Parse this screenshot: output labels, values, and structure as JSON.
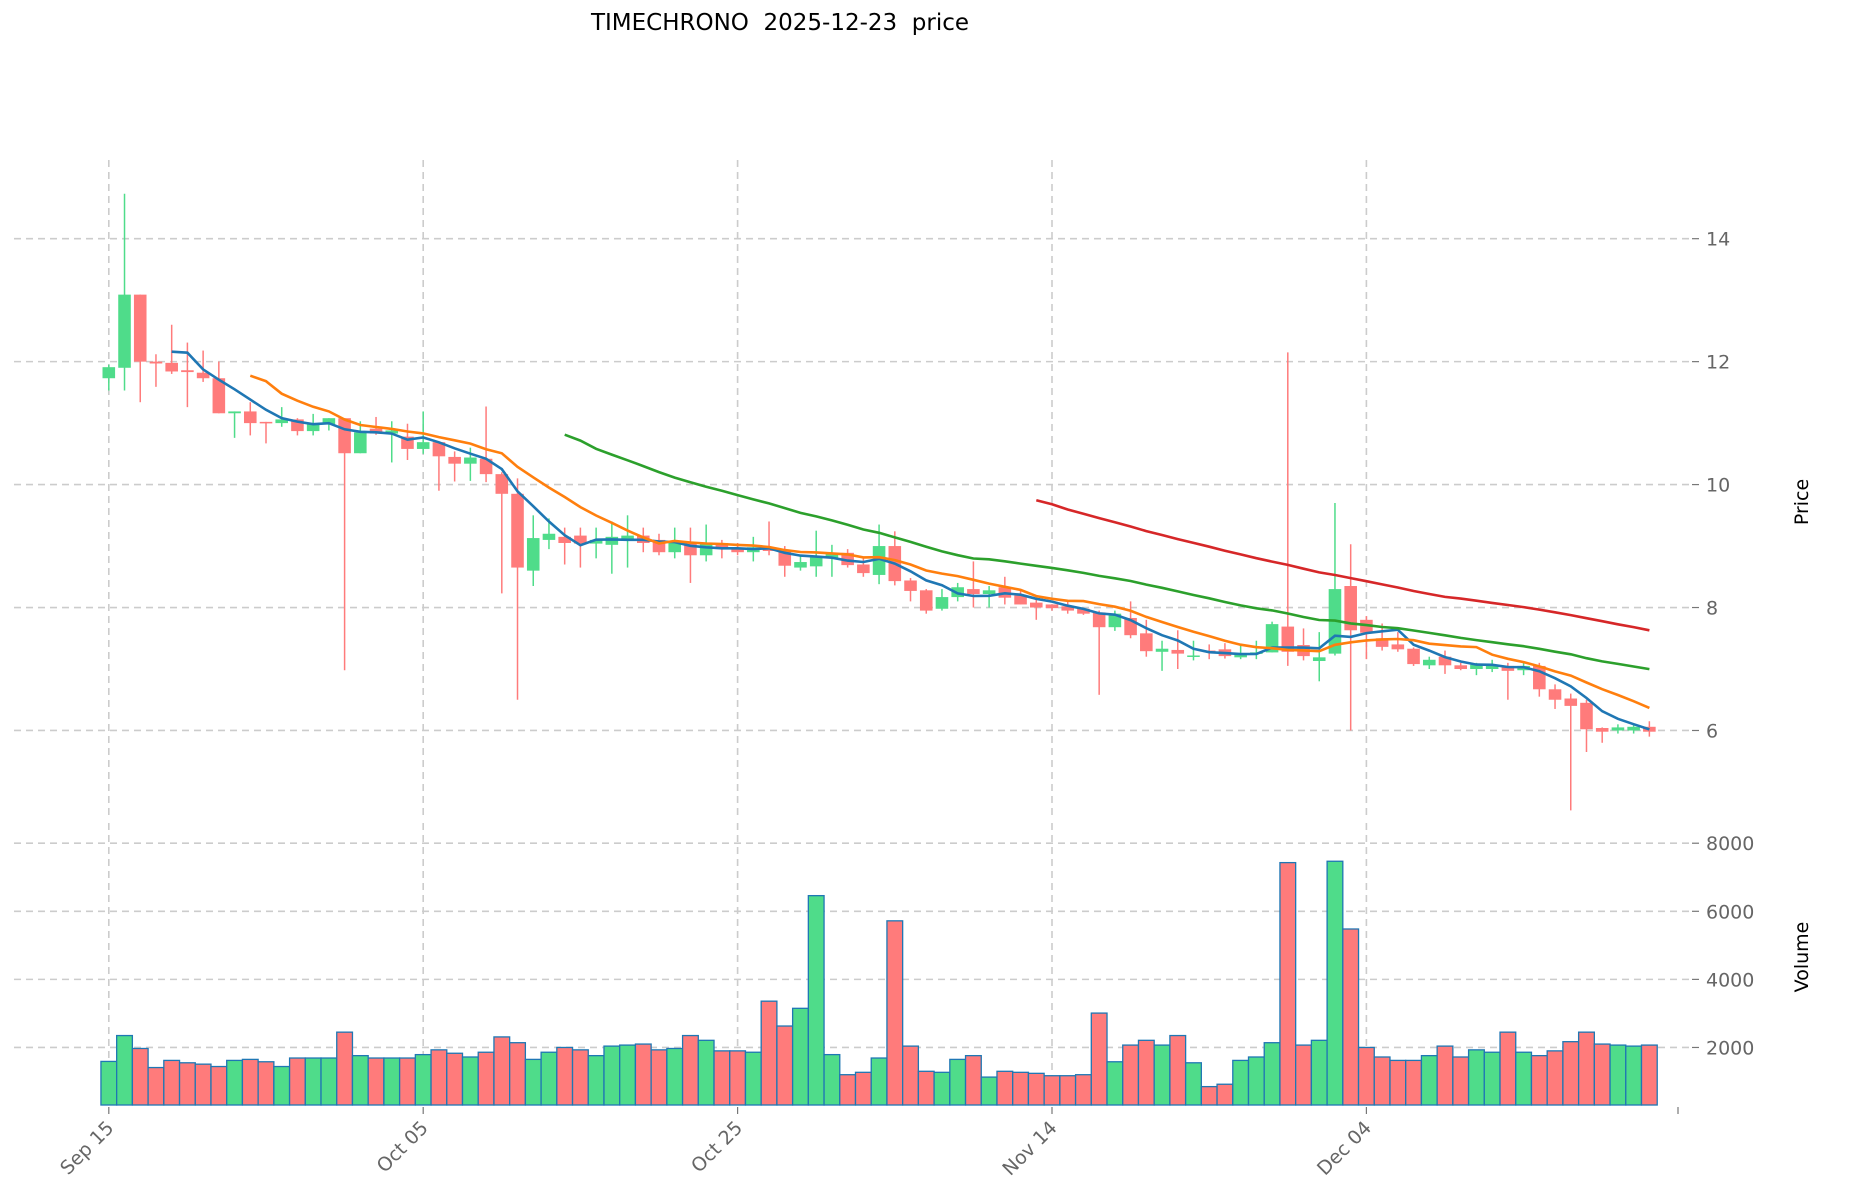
{
  "chart_data": {
    "type": "candlestick",
    "title": "TIMECHRONO  2025-12-23  price",
    "start_date": "2025-09-15",
    "x_tick_labels": [
      "Sep 15",
      "Oct 05",
      "Oct 25",
      "Nov 14",
      "Dec 04"
    ],
    "x_tick_days": [
      0,
      20,
      40,
      60,
      80
    ],
    "price_panel": {
      "ylabel": "Price",
      "ylim": [
        4.56,
        15.28
      ],
      "yticks": [
        6,
        8,
        10,
        12,
        14
      ],
      "ytick_labels": [
        "6",
        "8",
        "10",
        "12",
        "14"
      ],
      "grid": true
    },
    "volume_panel": {
      "ylabel": "Volume",
      "ylim": [
        310,
        8300
      ],
      "yticks": [
        2000,
        4000,
        6000,
        8000
      ],
      "ytick_labels": [
        "2000",
        "4000",
        "6000",
        "8000"
      ],
      "grid": true
    },
    "open": [
      11.73,
      11.9,
      13.09,
      12.0,
      11.98,
      11.86,
      11.82,
      11.73,
      11.16,
      11.19,
      11.02,
      11.0,
      11.06,
      10.87,
      10.98,
      11.08,
      10.51,
      10.91,
      10.83,
      10.78,
      10.58,
      10.69,
      10.45,
      10.34,
      10.42,
      10.17,
      9.85,
      8.6,
      9.1,
      9.15,
      9.17,
      9.04,
      9.02,
      9.1,
      9.17,
      9.1,
      8.9,
      9.05,
      8.85,
      9.05,
      8.97,
      8.9,
      8.98,
      8.92,
      8.65,
      8.67,
      8.81,
      8.89,
      8.7,
      8.53,
      9.0,
      8.44,
      8.28,
      7.98,
      8.17,
      8.3,
      8.22,
      8.33,
      8.2,
      8.08,
      8.05,
      8.02,
      7.98,
      7.92,
      7.68,
      7.83,
      7.58,
      7.28,
      7.31,
      7.2,
      7.3,
      7.32,
      7.19,
      7.25,
      7.27,
      7.69,
      7.39,
      7.13,
      7.25,
      8.35,
      7.8,
      7.5,
      7.4,
      7.33,
      7.06,
      7.2,
      7.06,
      7.0,
      7.0,
      7.05,
      6.98,
      7.05,
      6.67,
      6.52,
      6.45,
      6.04,
      6.0,
      6.0,
      6.06
    ],
    "high": [
      11.95,
      14.73,
      13.09,
      12.12,
      12.6,
      12.31,
      12.18,
      12.0,
      11.19,
      11.34,
      11.02,
      11.26,
      11.08,
      11.15,
      11.08,
      11.08,
      11.03,
      11.1,
      11.03,
      10.99,
      11.19,
      10.69,
      10.54,
      10.6,
      11.27,
      10.2,
      10.1,
      9.5,
      9.45,
      9.3,
      9.3,
      9.3,
      9.4,
      9.5,
      9.3,
      9.2,
      9.3,
      9.3,
      9.35,
      9.1,
      9.05,
      9.15,
      9.4,
      9.0,
      8.85,
      9.25,
      9.02,
      8.95,
      8.82,
      9.35,
      9.24,
      8.48,
      8.3,
      8.3,
      8.4,
      8.75,
      8.35,
      8.5,
      8.3,
      8.15,
      8.05,
      8.1,
      8.0,
      7.95,
      7.95,
      8.1,
      7.8,
      7.46,
      7.63,
      7.46,
      7.4,
      7.42,
      7.4,
      7.46,
      7.77,
      12.15,
      7.66,
      7.6,
      9.7,
      9.03,
      7.86,
      7.74,
      7.6,
      7.35,
      7.2,
      7.3,
      7.1,
      7.1,
      7.15,
      7.1,
      7.1,
      7.1,
      6.75,
      6.6,
      6.5,
      6.05,
      6.1,
      6.1,
      6.15
    ],
    "low": [
      11.53,
      11.53,
      11.34,
      11.59,
      11.8,
      11.26,
      11.67,
      11.16,
      10.76,
      10.8,
      10.67,
      10.94,
      10.8,
      10.8,
      10.88,
      6.98,
      10.51,
      10.81,
      10.36,
      10.4,
      10.5,
      9.9,
      10.05,
      10.06,
      10.04,
      8.23,
      6.5,
      8.35,
      8.95,
      8.7,
      8.65,
      8.8,
      8.55,
      8.65,
      8.9,
      8.85,
      8.8,
      8.4,
      8.75,
      8.8,
      8.85,
      8.75,
      8.85,
      8.5,
      8.6,
      8.5,
      8.5,
      8.65,
      8.5,
      8.38,
      8.36,
      8.1,
      7.9,
      7.95,
      8.1,
      8.0,
      8.0,
      8.05,
      8.05,
      7.8,
      7.95,
      7.9,
      7.88,
      6.58,
      7.62,
      7.5,
      7.2,
      6.97,
      7.0,
      7.14,
      7.16,
      7.17,
      7.16,
      7.16,
      7.27,
      7.05,
      7.14,
      6.8,
      7.22,
      6.0,
      7.16,
      7.3,
      7.28,
      7.05,
      7.0,
      6.92,
      6.98,
      6.9,
      6.95,
      6.5,
      6.9,
      6.55,
      6.35,
      4.7,
      5.65,
      5.8,
      5.95,
      5.95,
      5.9
    ],
    "close": [
      11.91,
      13.09,
      12.0,
      11.97,
      11.84,
      11.83,
      11.73,
      11.16,
      11.19,
      11.0,
      11.0,
      11.06,
      10.87,
      10.98,
      11.08,
      10.51,
      10.85,
      10.83,
      10.88,
      10.58,
      10.69,
      10.46,
      10.34,
      10.44,
      10.17,
      9.85,
      8.65,
      9.13,
      9.2,
      9.05,
      9.04,
      9.1,
      9.15,
      9.17,
      9.05,
      8.9,
      9.05,
      8.85,
      9.05,
      8.97,
      8.9,
      8.98,
      8.92,
      8.68,
      8.74,
      8.82,
      8.89,
      8.69,
      8.56,
      9.0,
      8.43,
      8.27,
      7.95,
      8.17,
      8.33,
      8.22,
      8.28,
      8.16,
      8.05,
      8.0,
      7.99,
      7.95,
      7.9,
      7.68,
      7.9,
      7.55,
      7.29,
      7.33,
      7.25,
      7.22,
      7.28,
      7.21,
      7.25,
      7.27,
      7.73,
      7.28,
      7.21,
      7.19,
      8.3,
      7.63,
      7.59,
      7.36,
      7.32,
      7.08,
      7.15,
      7.06,
      7.0,
      7.07,
      7.06,
      6.97,
      7.05,
      6.67,
      6.5,
      6.4,
      6.02,
      5.98,
      6.05,
      6.06,
      5.98
    ],
    "volume": [
      1590,
      2350,
      1970,
      1410,
      1620,
      1550,
      1510,
      1440,
      1620,
      1650,
      1580,
      1440,
      1690,
      1690,
      1690,
      2450,
      1760,
      1690,
      1690,
      1690,
      1790,
      1930,
      1830,
      1720,
      1860,
      2310,
      2140,
      1650,
      1860,
      2000,
      1930,
      1760,
      2040,
      2070,
      2100,
      1930,
      1970,
      2350,
      2210,
      1900,
      1900,
      1860,
      3360,
      2630,
      3150,
      6460,
      1790,
      1200,
      1270,
      1690,
      5720,
      2040,
      1300,
      1270,
      1650,
      1760,
      1130,
      1300,
      1270,
      1240,
      1170,
      1170,
      1200,
      3010,
      1580,
      2070,
      2210,
      2070,
      2350,
      1550,
      850,
      920,
      1620,
      1720,
      2140,
      7430,
      2070,
      2210,
      7470,
      5480,
      2000,
      1720,
      1620,
      1620,
      1760,
      2040,
      1720,
      1930,
      1860,
      2450,
      1860,
      1760,
      1900,
      2170,
      2450,
      2100,
      2070,
      2040,
      2070
    ],
    "moving_averages": [
      {
        "period": 5,
        "color": "#1f77b4"
      },
      {
        "period": 10,
        "color": "#ff7f0e"
      },
      {
        "period": 30,
        "color": "#2ca02c"
      },
      {
        "period": 60,
        "color": "#d62728"
      }
    ],
    "colors": {
      "up": "#4fdc8a",
      "down": "#ff7b7b",
      "volume_edge": "#1f77b4",
      "grid": "#cccccc"
    }
  }
}
